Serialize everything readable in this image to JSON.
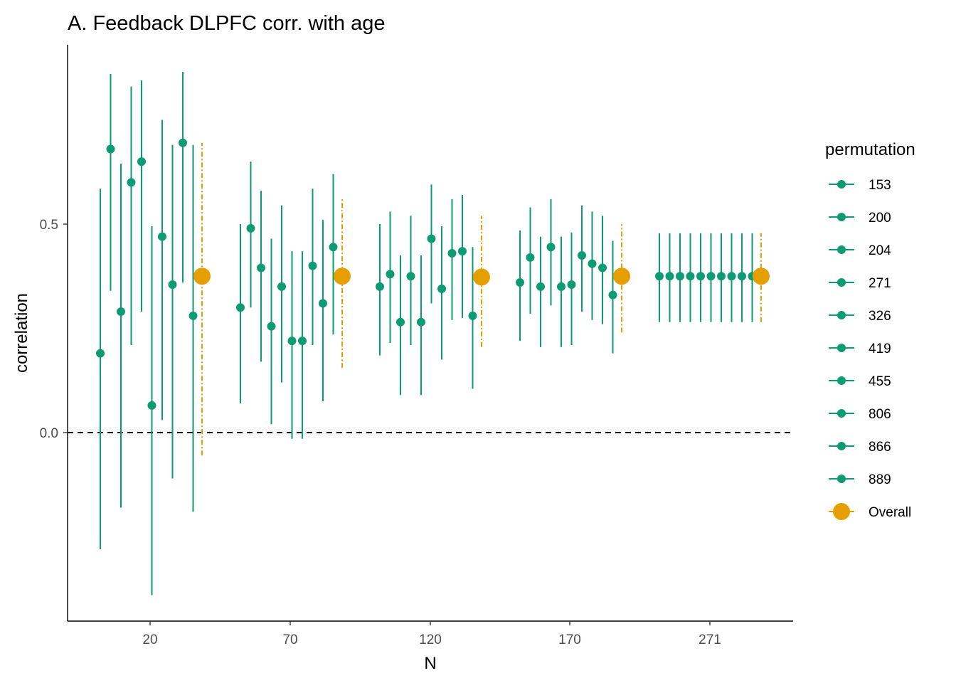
{
  "chart_data": {
    "type": "errorbar",
    "title": "A. Feedback DLPFC corr. with age",
    "xlabel": "N",
    "ylabel": "correlation",
    "ylim": [
      -0.45,
      0.93
    ],
    "y_ticks": [
      0.0,
      0.5
    ],
    "y_tick_labels": [
      "0.0",
      "0.5"
    ],
    "reference_line": {
      "y": 0.0,
      "style": "dashed"
    },
    "grid": false,
    "legend": {
      "title": "permutation",
      "placement": "right",
      "entries": [
        "153",
        "200",
        "204",
        "271",
        "326",
        "419",
        "455",
        "806",
        "866",
        "889",
        "Overall"
      ]
    },
    "colors": {
      "permutation": "#0C9B73",
      "overall": "#E69F00"
    },
    "groups": [
      {
        "label": "20",
        "estimates": [
          0.19,
          0.68,
          0.29,
          0.6,
          0.65,
          0.065,
          0.47,
          0.355,
          0.695,
          0.28
        ],
        "lower": [
          -0.28,
          0.34,
          -0.18,
          0.21,
          0.29,
          -0.39,
          0.03,
          -0.11,
          0.36,
          -0.19
        ],
        "upper": [
          0.585,
          0.86,
          0.645,
          0.83,
          0.845,
          0.495,
          0.75,
          0.69,
          0.865,
          0.69
        ],
        "overall": {
          "estimate": 0.375,
          "lower": -0.055,
          "upper": 0.695
        }
      },
      {
        "label": "70",
        "estimates": [
          0.3,
          0.49,
          0.395,
          0.255,
          0.35,
          0.22,
          0.22,
          0.4,
          0.31,
          0.445
        ],
        "lower": [
          0.07,
          0.3,
          0.17,
          0.02,
          0.12,
          -0.015,
          -0.015,
          0.21,
          0.075,
          0.235
        ],
        "upper": [
          0.5,
          0.65,
          0.58,
          0.465,
          0.545,
          0.435,
          0.435,
          0.585,
          0.51,
          0.62
        ],
        "overall": {
          "estimate": 0.375,
          "lower": 0.155,
          "upper": 0.56
        }
      },
      {
        "label": "120",
        "estimates": [
          0.35,
          0.38,
          0.265,
          0.375,
          0.265,
          0.465,
          0.345,
          0.43,
          0.435,
          0.28
        ],
        "lower": [
          0.185,
          0.215,
          0.09,
          0.21,
          0.09,
          0.31,
          0.175,
          0.27,
          0.275,
          0.105
        ],
        "upper": [
          0.5,
          0.53,
          0.425,
          0.52,
          0.425,
          0.595,
          0.495,
          0.56,
          0.57,
          0.445
        ],
        "overall": {
          "estimate": 0.373,
          "lower": 0.205,
          "upper": 0.52
        }
      },
      {
        "label": "170",
        "estimates": [
          0.36,
          0.42,
          0.35,
          0.445,
          0.35,
          0.355,
          0.425,
          0.405,
          0.395,
          0.33
        ],
        "lower": [
          0.22,
          0.285,
          0.205,
          0.305,
          0.205,
          0.21,
          0.29,
          0.27,
          0.26,
          0.19
        ],
        "upper": [
          0.485,
          0.54,
          0.47,
          0.56,
          0.47,
          0.48,
          0.545,
          0.53,
          0.52,
          0.46
        ],
        "overall": {
          "estimate": 0.375,
          "lower": 0.24,
          "upper": 0.5
        }
      },
      {
        "label": "271",
        "estimates": [
          0.375,
          0.375,
          0.375,
          0.375,
          0.375,
          0.375,
          0.375,
          0.375,
          0.375,
          0.375
        ],
        "lower": [
          0.265,
          0.265,
          0.265,
          0.265,
          0.265,
          0.265,
          0.265,
          0.265,
          0.265,
          0.265
        ],
        "upper": [
          0.478,
          0.478,
          0.478,
          0.478,
          0.478,
          0.478,
          0.478,
          0.478,
          0.478,
          0.478
        ],
        "overall": {
          "estimate": 0.375,
          "lower": 0.265,
          "upper": 0.478
        }
      }
    ]
  }
}
